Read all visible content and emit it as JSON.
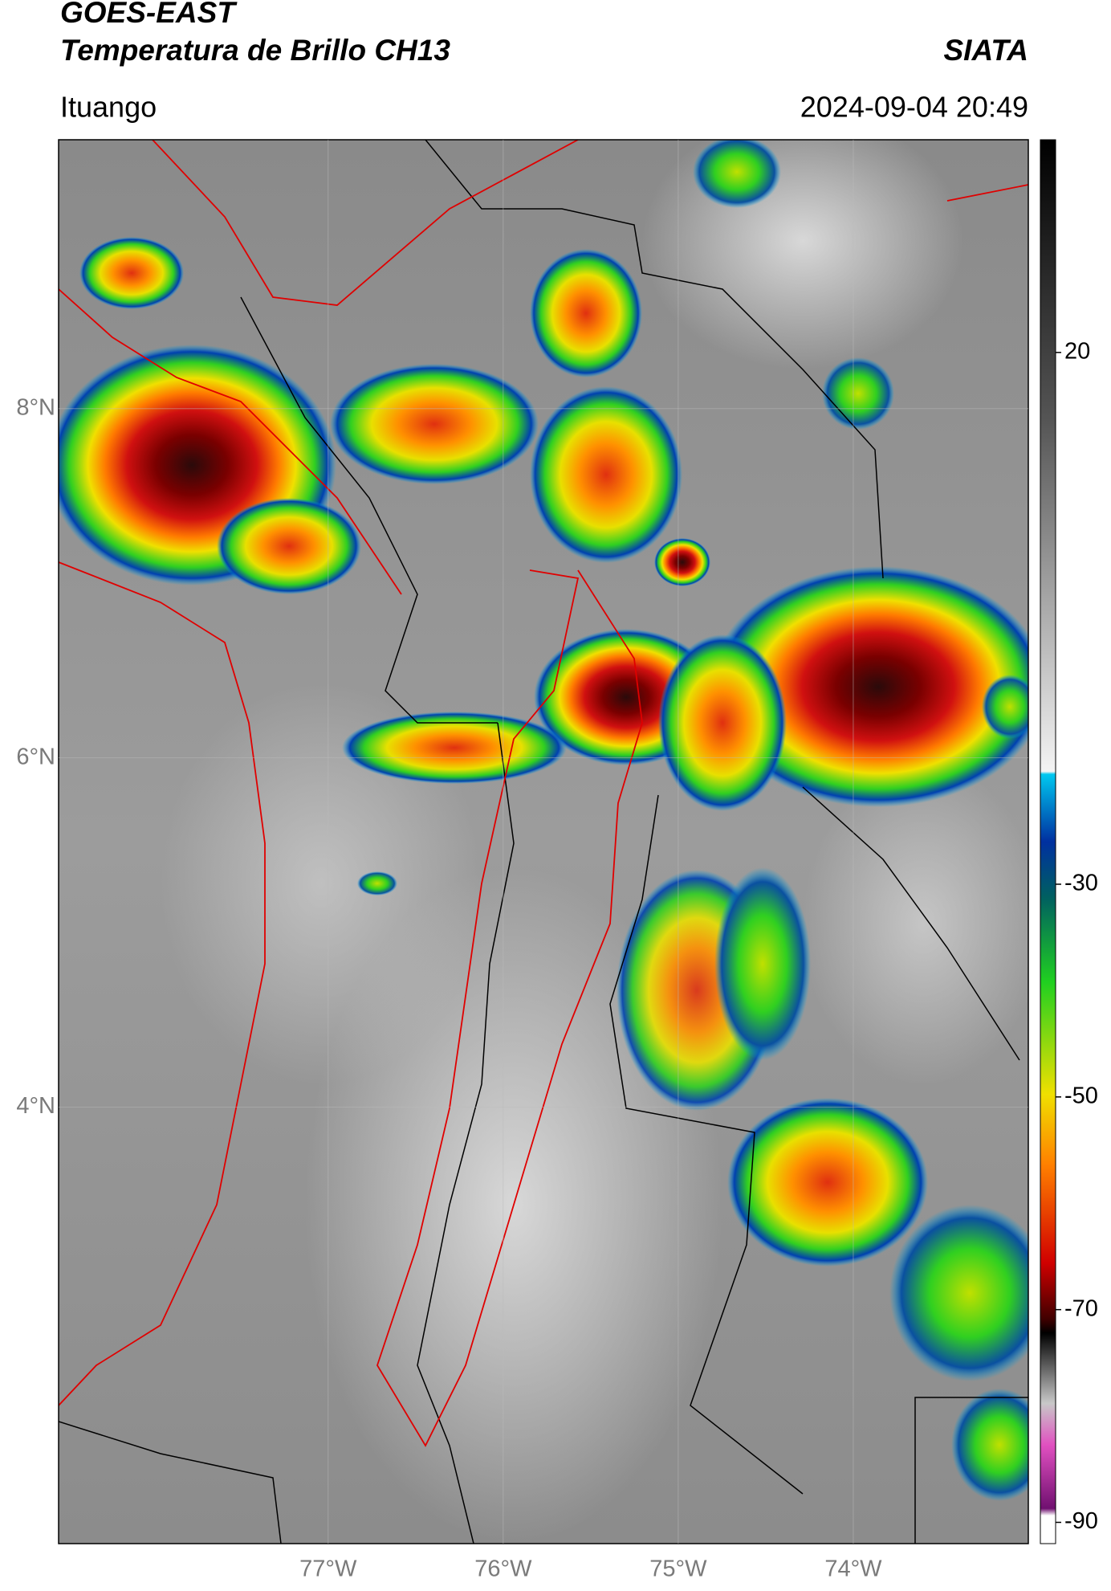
{
  "header": {
    "title": "GOES-EAST",
    "subtitle": "Temperatura de Brillo CH13",
    "brand": "SIATA",
    "location": "Ituango",
    "datetime": "2024-09-04 20:49"
  },
  "map": {
    "lat_range": [
      1.5,
      9.54
    ],
    "lon_range": [
      -78.54,
      -73.0
    ],
    "lat_ticks": [
      {
        "value": 8,
        "label": "8°N"
      },
      {
        "value": 6,
        "label": "6°N"
      },
      {
        "value": 4,
        "label": "4°N"
      }
    ],
    "lon_ticks": [
      {
        "value": -77,
        "label": "77°W"
      },
      {
        "value": -76,
        "label": "76°W"
      },
      {
        "value": -75,
        "label": "75°W"
      },
      {
        "value": -74,
        "label": "74°W"
      }
    ]
  },
  "colorbar": {
    "range": [
      -92,
      40
    ],
    "ticks": [
      20,
      -30,
      -50,
      -70,
      -90
    ]
  }
}
